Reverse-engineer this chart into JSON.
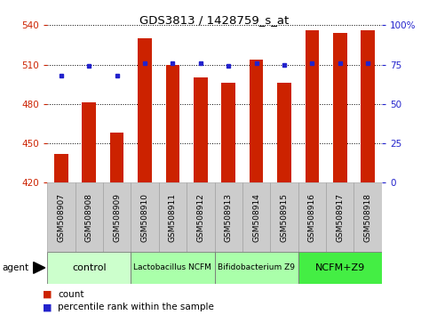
{
  "title": "GDS3813 / 1428759_s_at",
  "samples": [
    "GSM508907",
    "GSM508908",
    "GSM508909",
    "GSM508910",
    "GSM508911",
    "GSM508912",
    "GSM508913",
    "GSM508914",
    "GSM508915",
    "GSM508916",
    "GSM508917",
    "GSM508918"
  ],
  "counts": [
    442,
    481,
    458,
    530,
    510,
    500,
    496,
    514,
    496,
    536,
    534,
    536
  ],
  "percentiles": [
    68,
    74,
    68,
    76,
    76,
    76,
    74,
    76,
    75,
    76,
    76,
    76
  ],
  "ylim_left": [
    420,
    540
  ],
  "ylim_right": [
    0,
    100
  ],
  "yticks_left": [
    420,
    450,
    480,
    510,
    540
  ],
  "yticks_right": [
    0,
    25,
    50,
    75,
    100
  ],
  "groups": [
    {
      "label": "control",
      "start": 0,
      "end": 3,
      "color": "#ccffcc",
      "fontsize": 8
    },
    {
      "label": "Lactobacillus NCFM",
      "start": 3,
      "end": 6,
      "color": "#aaffaa",
      "fontsize": 6.5
    },
    {
      "label": "Bifidobacterium Z9",
      "start": 6,
      "end": 9,
      "color": "#aaffaa",
      "fontsize": 6.5
    },
    {
      "label": "NCFM+Z9",
      "start": 9,
      "end": 12,
      "color": "#44ee44",
      "fontsize": 8
    }
  ],
  "bar_color": "#cc2200",
  "dot_color": "#2222cc",
  "bar_width": 0.5,
  "grid_color": "#000000",
  "bg_color": "#cccccc",
  "legend_count_color": "#cc2200",
  "legend_pct_color": "#2222cc",
  "title_color": "#000000",
  "left_axis_color": "#cc2200",
  "right_axis_color": "#2222cc",
  "fig_width": 4.83,
  "fig_height": 3.54,
  "fig_dpi": 100
}
